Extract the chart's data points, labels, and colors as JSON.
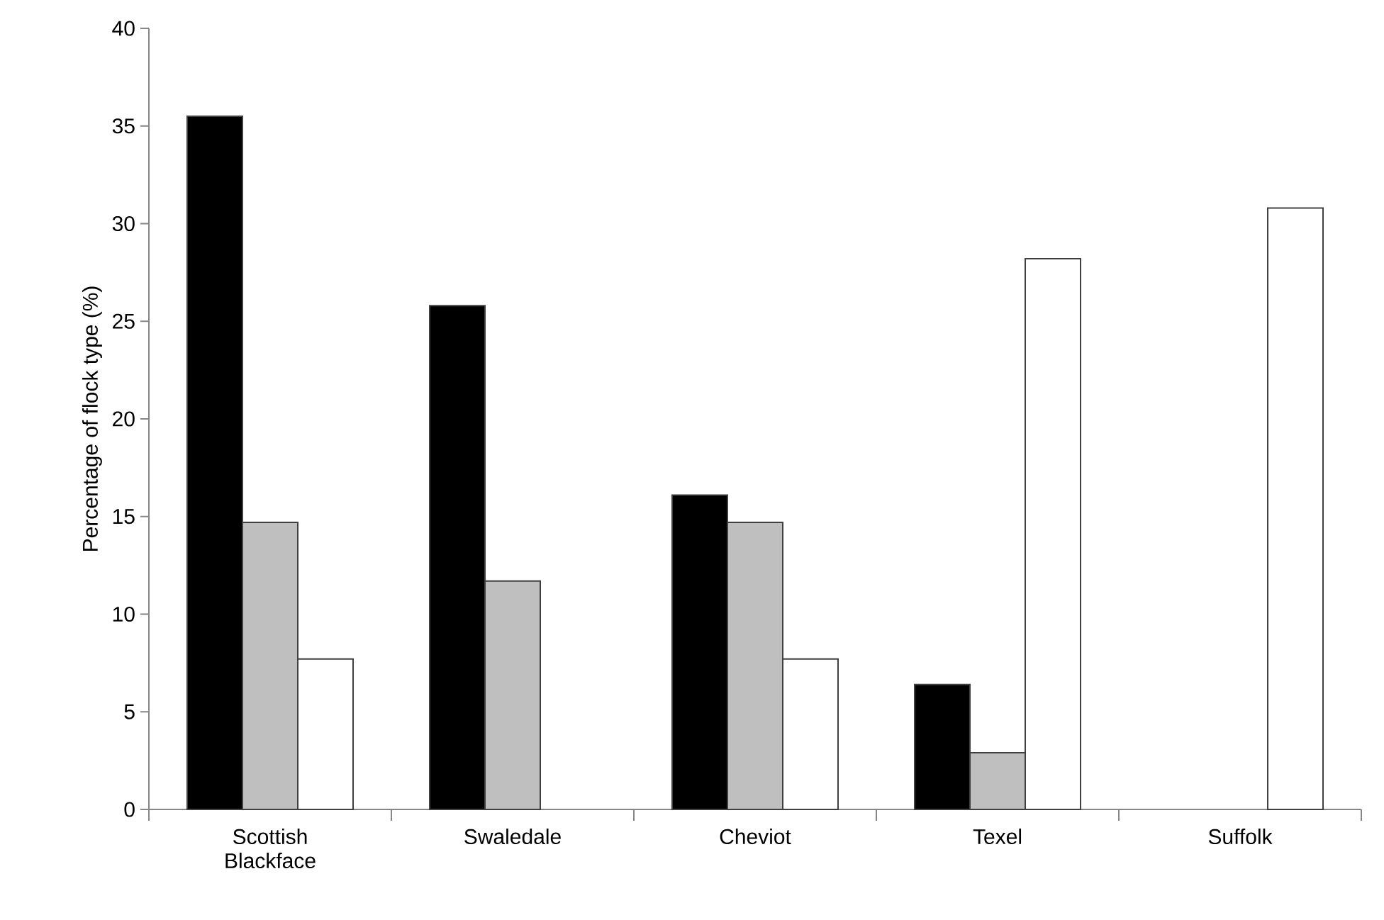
{
  "chart_data": {
    "type": "bar",
    "ylabel": "Percentage of flock type (%)",
    "categories": [
      "Scottish Blackface",
      "Swaledale",
      "Cheviot",
      "Texel",
      "Suffolk"
    ],
    "series": [
      {
        "color": "#000000",
        "values": [
          35.5,
          25.8,
          16.1,
          6.4,
          null
        ]
      },
      {
        "color": "#bfbfbf",
        "values": [
          14.7,
          11.7,
          14.7,
          2.9,
          null
        ]
      },
      {
        "color": "#ffffff",
        "values": [
          7.7,
          null,
          7.7,
          28.2,
          30.8
        ]
      }
    ],
    "ylim": [
      0,
      40
    ],
    "yticks": [
      0,
      5,
      10,
      15,
      20,
      25,
      30,
      35,
      40
    ]
  }
}
